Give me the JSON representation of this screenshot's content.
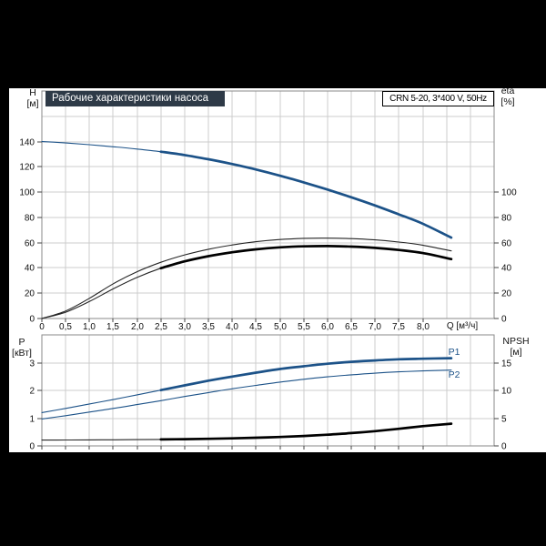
{
  "colors": {
    "curve_blue": "#1c5288",
    "curve_dark": "#242424",
    "highlight_black": "#000000",
    "grid": "#cccccc",
    "frame": "#8a8a8a",
    "tick": "#444444",
    "tick_text": "#111111",
    "title_bar_bg": "#2e3a47",
    "title_bar_text": "#ffffff"
  },
  "chart_data": [
    {
      "type": "line",
      "title": "Рабочие характеристики насоса",
      "annotation": "CRN 5-20, 3*400 V, 50Hz",
      "grid": true,
      "x": {
        "label": "Q [м³/ч]",
        "range": [
          0,
          9.5
        ],
        "grid_step": 0.5,
        "tick_labels": [
          "0",
          "0,5",
          "1,0",
          "1,5",
          "2,0",
          "2,5",
          "3,0",
          "3,5",
          "4,0",
          "4,5",
          "5,0",
          "5,5",
          "6,0",
          "6,5",
          "7,0",
          "7,5",
          "8,0"
        ]
      },
      "y_left": {
        "title": "H",
        "unit": "[м]",
        "range": [
          0,
          180
        ],
        "grid_step": 20,
        "tick_labels": [
          "0",
          "20",
          "40",
          "60",
          "80",
          "100",
          "120",
          "140"
        ]
      },
      "y_right": {
        "title": "eta",
        "unit": "[%]",
        "range": [
          0,
          180
        ],
        "tick_values": [
          0,
          20,
          40,
          60,
          80,
          100
        ],
        "tick_labels": [
          "0",
          "20",
          "40",
          "60",
          "80",
          "100"
        ]
      },
      "highlight_from_q": 2.5,
      "q": [
        0,
        0.5,
        1,
        1.5,
        2,
        2.5,
        3,
        3.5,
        4,
        4.5,
        5,
        5.5,
        6,
        6.5,
        7,
        7.5,
        8,
        8.6
      ],
      "series": [
        {
          "name": "head-curve",
          "label": "",
          "axis": "left",
          "color_key": "curve_blue",
          "highlight": true,
          "values": [
            140,
            138.9,
            137.5,
            135.9,
            134.1,
            132,
            129.3,
            126,
            122.2,
            117.9,
            113,
            107.7,
            102,
            95.9,
            89.4,
            82.4,
            75,
            64
          ]
        },
        {
          "name": "eta-upper-curve",
          "label": "",
          "axis": "right",
          "color_key": "curve_dark",
          "highlight": false,
          "values": [
            0,
            6,
            16,
            27.5,
            37,
            44.5,
            50.3,
            54.8,
            58.2,
            60.8,
            62.5,
            63.4,
            63.6,
            63.2,
            62.2,
            60.5,
            58,
            53.5
          ]
        },
        {
          "name": "eta-lower-curve",
          "label": "",
          "axis": "right",
          "color_key": "curve_dark",
          "highlight": true,
          "values": [
            0,
            5,
            13.5,
            23.5,
            32.5,
            39.8,
            45.2,
            49.3,
            52.4,
            54.7,
            56.3,
            57.1,
            57.3,
            56.9,
            55.9,
            54.2,
            51.8,
            47
          ]
        }
      ]
    },
    {
      "type": "line",
      "title": "",
      "grid": true,
      "x": {
        "label": "",
        "range": [
          0,
          9.5
        ],
        "grid_step": 0.5,
        "tick_labels": [
          "",
          "",
          "",
          "",
          "",
          "",
          "",
          "",
          "",
          "",
          "",
          "",
          "",
          "",
          "",
          "",
          ""
        ]
      },
      "y_left": {
        "title": "P",
        "unit": "[кВт]",
        "range": [
          0,
          4
        ],
        "grid_step": 1,
        "tick_labels": [
          "0",
          "1",
          "2",
          "3"
        ]
      },
      "y_right": {
        "title": "NPSH",
        "unit": "[м]",
        "range": [
          0,
          20
        ],
        "tick_values": [
          0,
          5,
          10,
          15
        ],
        "tick_labels": [
          "0",
          "5",
          "10",
          "15"
        ]
      },
      "highlight_from_q": 2.5,
      "q": [
        0,
        0.5,
        1,
        1.5,
        2,
        2.5,
        3,
        3.5,
        4,
        4.5,
        5,
        5.5,
        6,
        6.5,
        7,
        7.5,
        8,
        8.6
      ],
      "series": [
        {
          "name": "p1-curve",
          "label": "P1",
          "axis": "left",
          "color_key": "curve_blue",
          "highlight": true,
          "values": [
            1.2,
            1.35,
            1.51,
            1.67,
            1.84,
            2.01,
            2.18,
            2.35,
            2.5,
            2.64,
            2.77,
            2.87,
            2.96,
            3.03,
            3.08,
            3.12,
            3.14,
            3.16
          ]
        },
        {
          "name": "p2-curve",
          "label": "P2",
          "axis": "left",
          "color_key": "curve_blue",
          "highlight": false,
          "values": [
            0.97,
            1.09,
            1.22,
            1.35,
            1.49,
            1.63,
            1.78,
            1.92,
            2.06,
            2.18,
            2.3,
            2.4,
            2.49,
            2.56,
            2.62,
            2.67,
            2.7,
            2.73
          ]
        },
        {
          "name": "npsh-curve",
          "label": "",
          "axis": "right",
          "color_key": "curve_dark",
          "highlight": true,
          "values": [
            1.05,
            1.06,
            1.08,
            1.1,
            1.13,
            1.17,
            1.22,
            1.28,
            1.36,
            1.47,
            1.61,
            1.79,
            2.02,
            2.31,
            2.66,
            3.08,
            3.55,
            4
          ]
        }
      ]
    }
  ]
}
